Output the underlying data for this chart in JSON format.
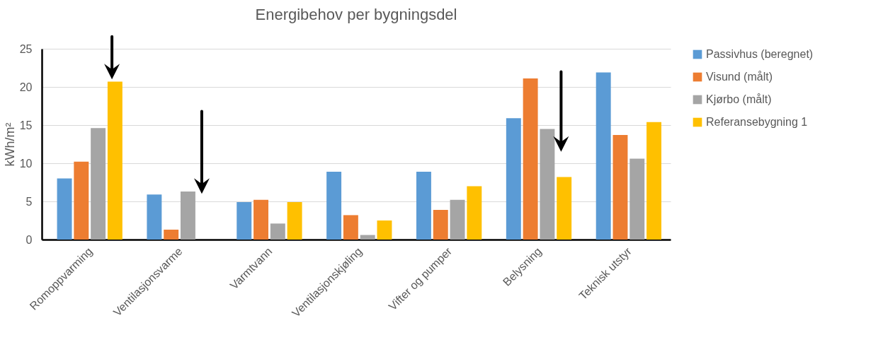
{
  "chart_data": {
    "type": "bar",
    "title": "Energibehov per bygningsdel",
    "ylabel": "kWh/m²",
    "categories": [
      "Romoppvarming",
      "Ventilasjonsvarme",
      "Varmtvann",
      "Ventilasjonskjøling",
      "Vifter og pumper",
      "Belysning",
      "Teknisk utstyr"
    ],
    "series": [
      {
        "name": "Passivhus (beregnet)",
        "color": "#5b9bd5",
        "values": [
          8.0,
          5.9,
          4.9,
          8.9,
          8.9,
          15.9,
          21.9
        ]
      },
      {
        "name": "Visund (målt)",
        "color": "#ed7d31",
        "values": [
          10.2,
          1.3,
          5.2,
          3.2,
          3.9,
          21.1,
          13.7
        ]
      },
      {
        "name": "Kjørbo (målt)",
        "color": "#a5a5a5",
        "values": [
          14.6,
          6.3,
          2.1,
          0.6,
          5.2,
          14.5,
          10.6
        ]
      },
      {
        "name": "Referansebygning 1",
        "color": "#ffc000",
        "values": [
          20.7,
          null,
          4.9,
          2.5,
          7.0,
          8.2,
          15.4
        ]
      }
    ],
    "ylim": [
      0,
      25
    ],
    "yticks": [
      0,
      5,
      10,
      15,
      20,
      25
    ],
    "grid": "y",
    "legend": "right"
  }
}
